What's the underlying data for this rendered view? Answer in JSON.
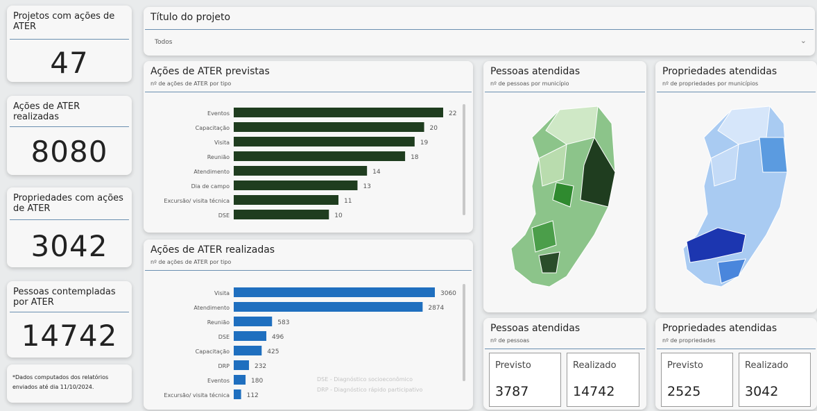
{
  "kpis": [
    {
      "label": "Projetos com ações de ATER",
      "value": "47"
    },
    {
      "label": "Ações de ATER realizadas",
      "value": "8080"
    },
    {
      "label": "Propriedades com ações de ATER",
      "value": "3042"
    },
    {
      "label": "Pessoas contempladas por ATER",
      "value": "14742"
    }
  ],
  "note": "*Dados computados dos relatórios enviados até dia 11/10/2024.",
  "filter": {
    "label": "Título do projeto",
    "value": "Todos"
  },
  "charts": [
    {
      "type": "bar",
      "title": "Ações de ATER previstas",
      "subtitle": "nº de ações de ATER por tipo",
      "categories": [
        "Eventos",
        "Capacitação",
        "Visita",
        "Reunião",
        "Atendimento",
        "Dia de campo",
        "Excursão/ visita técnica",
        "DSE"
      ],
      "values": [
        22,
        20,
        19,
        18,
        14,
        13,
        11,
        10
      ],
      "color": "#1f3d1f"
    },
    {
      "type": "bar",
      "title": "Ações de ATER realizadas",
      "subtitle": "nº de ações de ATER por tipo",
      "categories": [
        "Visita",
        "Atendimento",
        "Reunião",
        "DSE",
        "Capacitação",
        "DRP",
        "Eventos",
        "Excursão/ visita técnica"
      ],
      "values": [
        3060,
        2874,
        583,
        496,
        425,
        232,
        180,
        112
      ],
      "color": "#1f6fbf",
      "notes": [
        "DSE - Diagnóstico socioeconômico",
        "DRP - Diagnóstico rápido participativo"
      ]
    }
  ],
  "maps": [
    {
      "title": "Pessoas atendidas",
      "subtitle": "nº de pessoas por município"
    },
    {
      "title": "Propriedades atendidas",
      "subtitle": "nº de propriedades por municípios"
    }
  ],
  "summaries": [
    {
      "title": "Pessoas atendidas",
      "subtitle": "nº de pessoas",
      "items": [
        {
          "label": "Previsto",
          "value": "3787"
        },
        {
          "label": "Realizado",
          "value": "14742"
        }
      ]
    },
    {
      "title": "Propriedades atendidas",
      "subtitle": "nº de propriedades",
      "items": [
        {
          "label": "Previsto",
          "value": "2525"
        },
        {
          "label": "Realizado",
          "value": "3042"
        }
      ]
    }
  ]
}
